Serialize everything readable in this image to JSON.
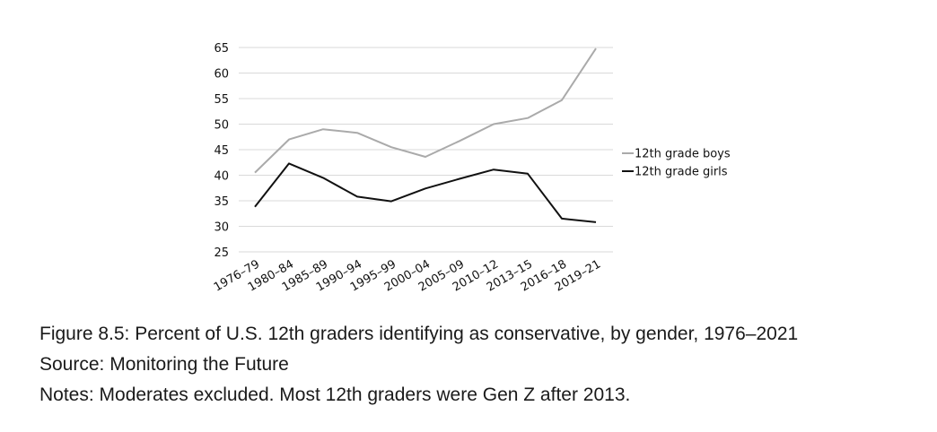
{
  "caption": {
    "figure": "Figure 8.5: Percent of U.S. 12th graders identifying as conservative, by gender, 1976–2021",
    "source": "Source: Monitoring the Future",
    "notes": "Notes: Moderates excluded. Most 12th graders were Gen Z after 2013."
  },
  "chart_data": {
    "type": "line",
    "categories": [
      "1976–79",
      "1980–84",
      "1985–89",
      "1990–94",
      "1995–99",
      "2000–04",
      "2005–09",
      "2010–12",
      "2013–15",
      "2016–18",
      "2019–21"
    ],
    "series": [
      {
        "name": "12th grade boys",
        "color": "#aaaaaa",
        "values": [
          40.5,
          47.0,
          49.0,
          48.3,
          45.5,
          43.6,
          46.7,
          50.0,
          51.2,
          54.7,
          64.8
        ]
      },
      {
        "name": "12th grade girls",
        "color": "#111111",
        "values": [
          33.8,
          42.3,
          39.5,
          35.8,
          34.9,
          37.4,
          39.3,
          41.1,
          40.3,
          31.5,
          30.8
        ]
      }
    ],
    "ylim": [
      25,
      65
    ],
    "yticks": [
      25,
      30,
      35,
      40,
      45,
      50,
      55,
      60,
      65
    ],
    "grid": true,
    "legend": "right"
  }
}
